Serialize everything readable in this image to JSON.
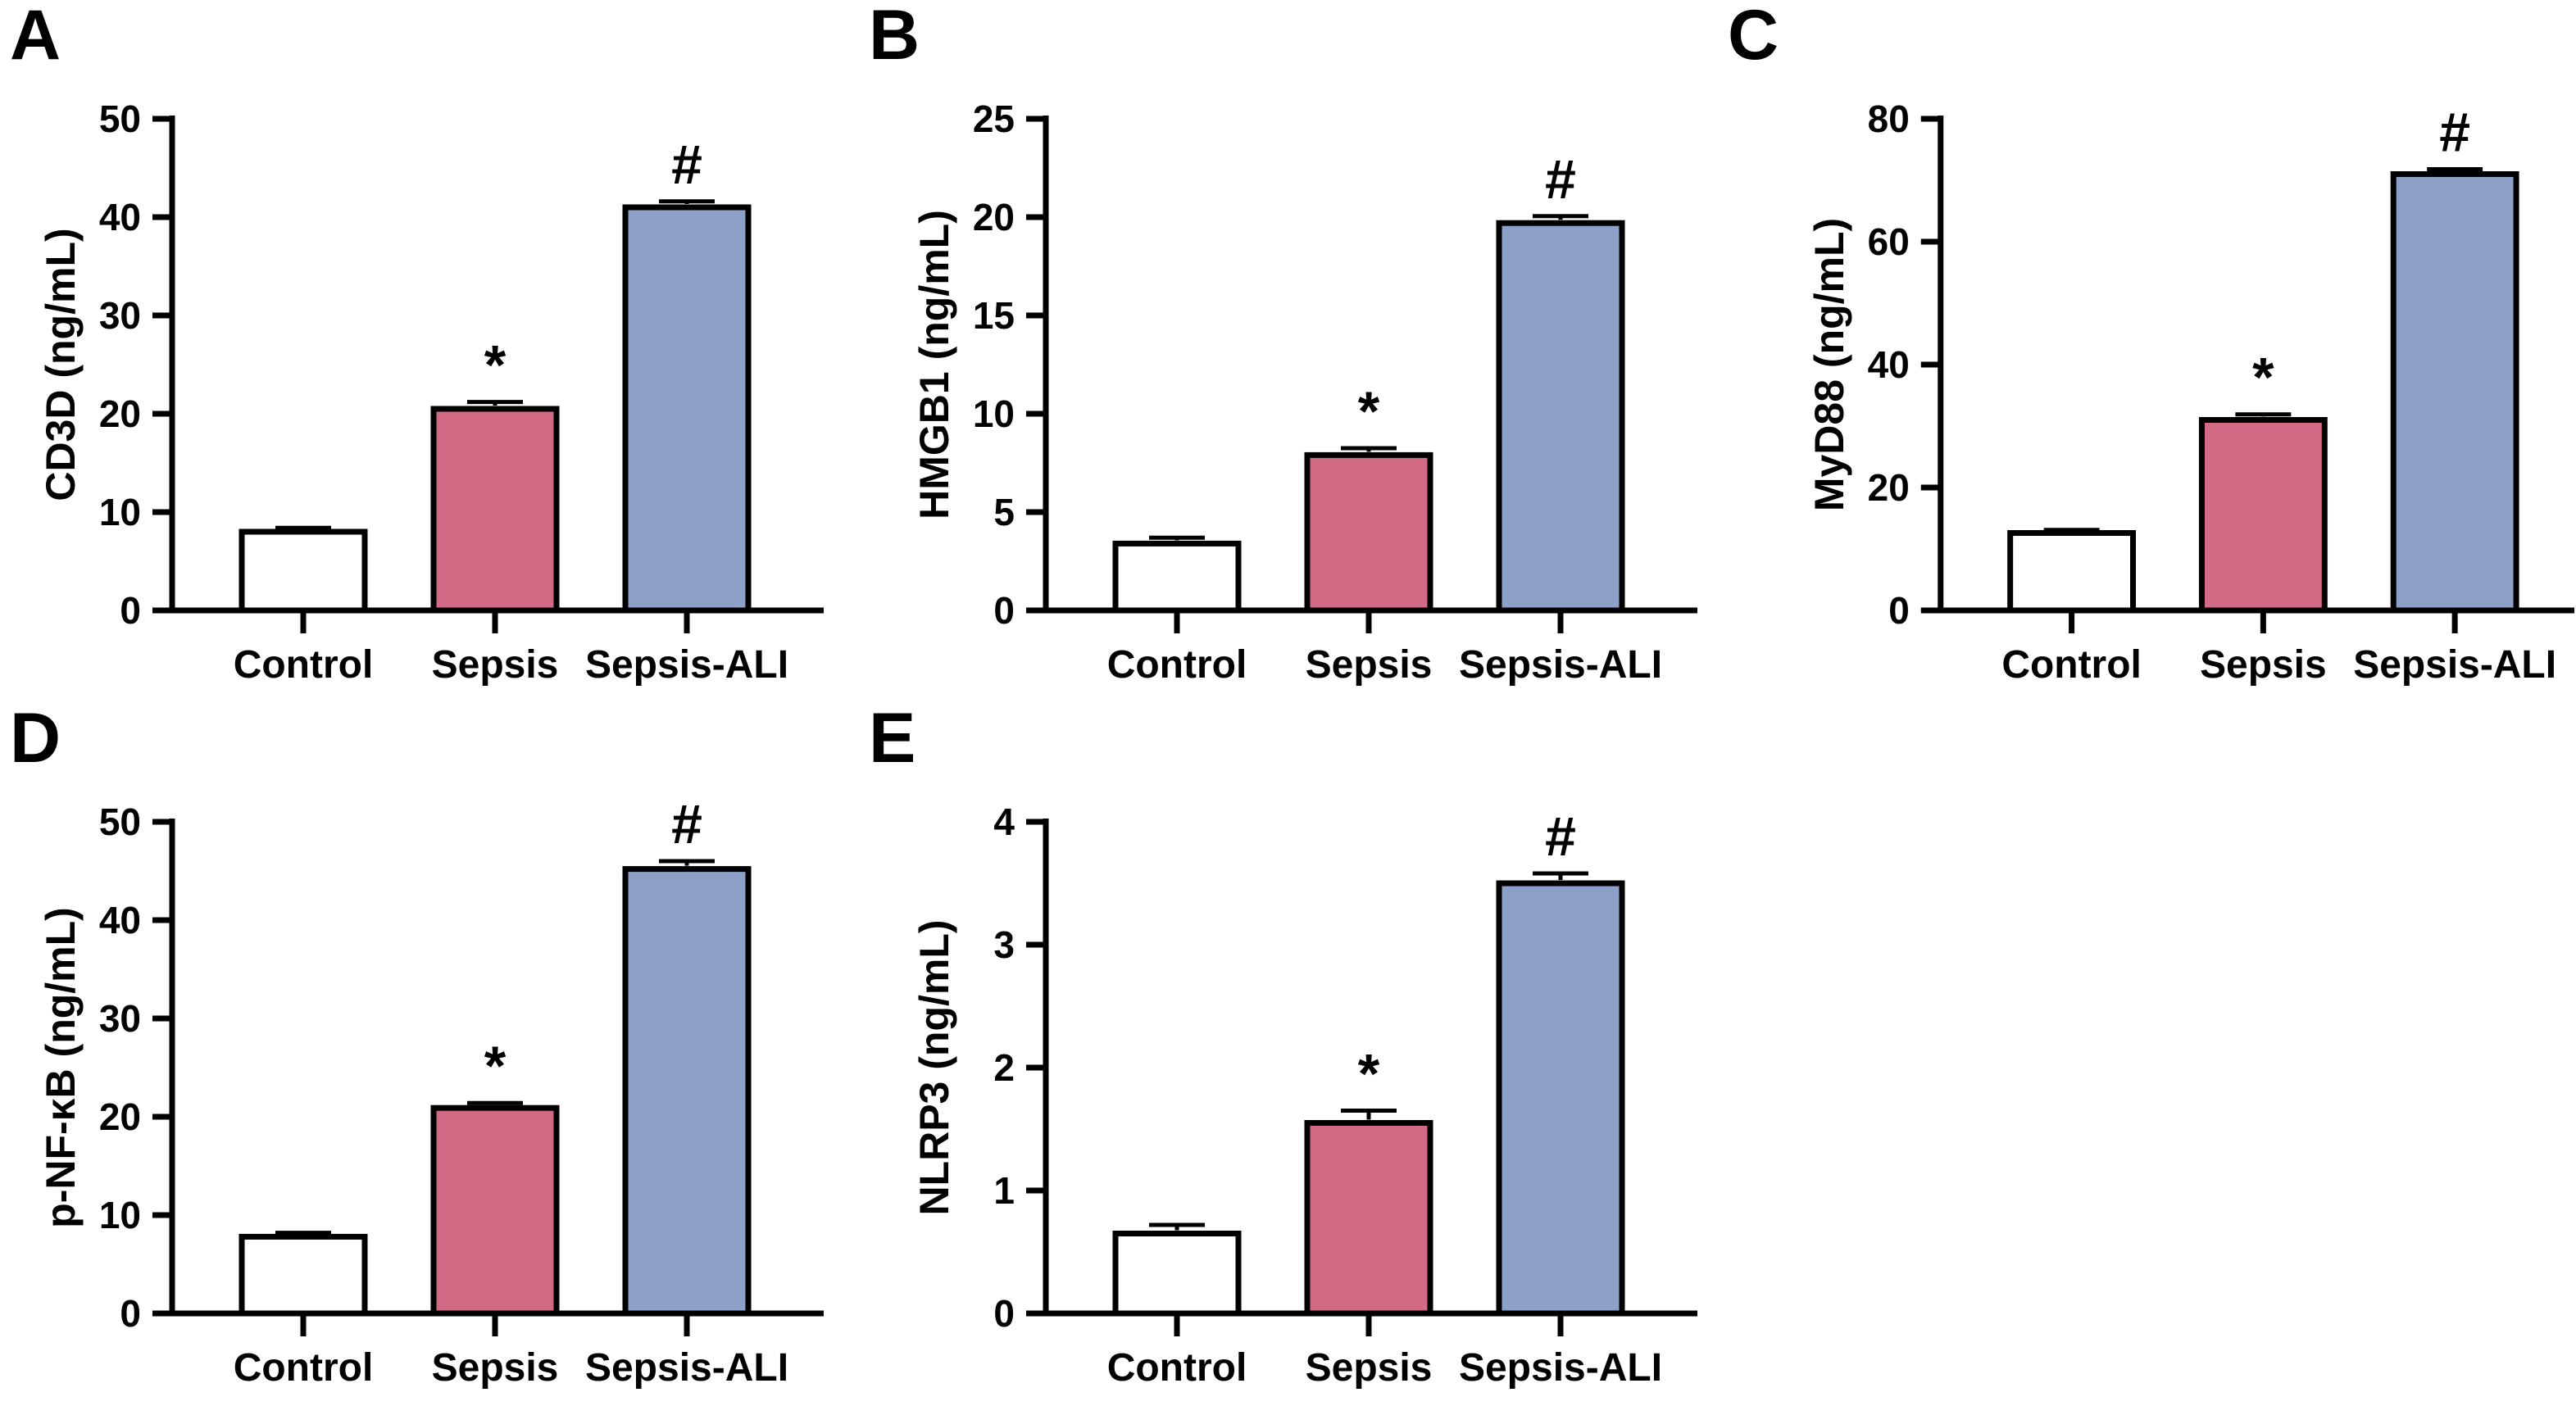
{
  "figure": {
    "description": "Five-panel bar chart figure comparing ELISA protein levels across Control, Sepsis and Sepsis-ALI groups",
    "groups": [
      "Control",
      "Sepsis",
      "Sepsis-ALI"
    ],
    "significance_markers": {
      "sepsis_vs_control": "*",
      "sepsis_ali_vs_sepsis": "#"
    },
    "colors": {
      "control_bar": "#ffffff",
      "sepsis_bar": "#d26985",
      "sepsis_ali_bar": "#8ca0c8",
      "axis": "#000000"
    }
  },
  "chart_data": [
    {
      "type": "bar",
      "panel": "A",
      "ylabel": "CD3D (ng/mL)",
      "categories": [
        "Control",
        "Sepsis",
        "Sepsis-ALI"
      ],
      "values": [
        8.0,
        20.5,
        41.0
      ],
      "errors": [
        0.4,
        0.7,
        0.6
      ],
      "bar_annotations": [
        "",
        "*",
        "#"
      ],
      "bar_colors": [
        "#ffffff",
        "#d26985",
        "#8ca0c8"
      ],
      "ylim": [
        0,
        50
      ],
      "ytick_step": 10,
      "grid": false,
      "legend": "none"
    },
    {
      "type": "bar",
      "panel": "B",
      "ylabel": "HMGB1 (ng/mL)",
      "categories": [
        "Control",
        "Sepsis",
        "Sepsis-ALI"
      ],
      "values": [
        3.4,
        7.9,
        19.7
      ],
      "errors": [
        0.3,
        0.35,
        0.35
      ],
      "bar_annotations": [
        "",
        "*",
        "#"
      ],
      "bar_colors": [
        "#ffffff",
        "#d26985",
        "#8ca0c8"
      ],
      "ylim": [
        0,
        25
      ],
      "ytick_step": 5,
      "grid": false,
      "legend": "none"
    },
    {
      "type": "bar",
      "panel": "C",
      "ylabel": "MyD88 (ng/mL)",
      "categories": [
        "Control",
        "Sepsis",
        "Sepsis-ALI"
      ],
      "values": [
        12.6,
        31.0,
        71.0
      ],
      "errors": [
        0.5,
        0.9,
        0.8
      ],
      "bar_annotations": [
        "",
        "*",
        "#"
      ],
      "bar_colors": [
        "#ffffff",
        "#d26985",
        "#8ca0c8"
      ],
      "ylim": [
        0,
        80
      ],
      "ytick_step": 20,
      "grid": false,
      "legend": "none"
    },
    {
      "type": "bar",
      "panel": "D",
      "ylabel": "p-NF-κB (ng/mL)",
      "categories": [
        "Control",
        "Sepsis",
        "Sepsis-ALI"
      ],
      "values": [
        7.8,
        20.9,
        45.2
      ],
      "errors": [
        0.4,
        0.5,
        0.8
      ],
      "bar_annotations": [
        "",
        "*",
        "#"
      ],
      "bar_colors": [
        "#ffffff",
        "#d26985",
        "#8ca0c8"
      ],
      "ylim": [
        0,
        50
      ],
      "ytick_step": 10,
      "grid": false,
      "legend": "none"
    },
    {
      "type": "bar",
      "panel": "E",
      "ylabel": "NLRP3 (ng/mL)",
      "categories": [
        "Control",
        "Sepsis",
        "Sepsis-ALI"
      ],
      "values": [
        0.65,
        1.55,
        3.5
      ],
      "errors": [
        0.07,
        0.1,
        0.08
      ],
      "bar_annotations": [
        "",
        "*",
        "#"
      ],
      "bar_colors": [
        "#ffffff",
        "#d26985",
        "#8ca0c8"
      ],
      "ylim": [
        0,
        4
      ],
      "ytick_step": 1,
      "grid": false,
      "legend": "none"
    }
  ]
}
